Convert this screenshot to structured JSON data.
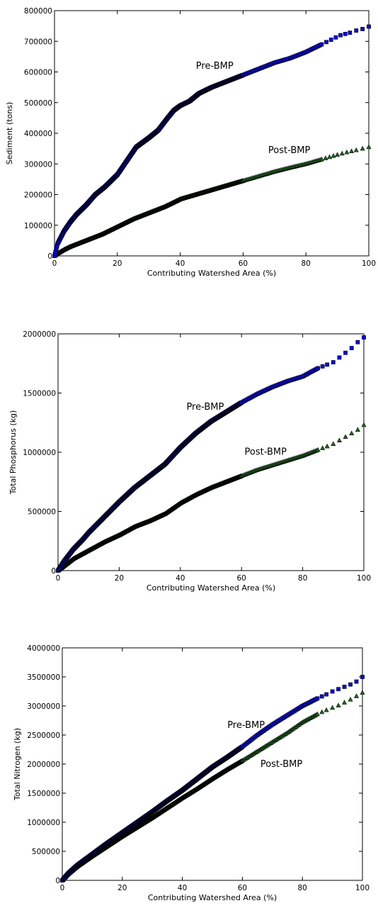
{
  "colors": {
    "pre": "#0a0ad8",
    "post": "#1e6b1e",
    "edge": "#000000"
  },
  "chart_data": [
    {
      "type": "scatter",
      "xlabel": "Contributing Watershed Area (%)",
      "ylabel": "Sediment (tons)",
      "xlim": [
        0,
        100
      ],
      "ylim": [
        0,
        800000
      ],
      "xticks": [
        0,
        20,
        40,
        60,
        80,
        100
      ],
      "yticks": [
        0,
        100000,
        200000,
        300000,
        400000,
        500000,
        600000,
        700000,
        800000
      ],
      "annotations": [
        {
          "text": "Pre-BMP",
          "x": 45,
          "y": 610000
        },
        {
          "text": "Post-BMP",
          "x": 68,
          "y": 335000
        }
      ],
      "series": [
        {
          "marker": "square",
          "color": "#0a0ad8",
          "x": [
            0,
            1,
            2,
            3,
            5,
            7,
            10,
            13,
            16,
            20,
            23,
            26,
            30,
            33,
            36,
            38,
            40,
            43,
            46,
            50,
            55,
            60,
            65,
            70,
            75,
            80,
            85,
            88,
            91,
            94,
            96,
            98,
            100
          ],
          "y": [
            0,
            40000,
            60000,
            80000,
            110000,
            135000,
            165000,
            200000,
            225000,
            265000,
            310000,
            355000,
            385000,
            410000,
            450000,
            475000,
            490000,
            505000,
            530000,
            550000,
            570000,
            590000,
            610000,
            630000,
            645000,
            665000,
            690000,
            705000,
            720000,
            728000,
            735000,
            740000,
            748000
          ]
        },
        {
          "marker": "triangle",
          "color": "#1e6b1e",
          "x": [
            0,
            1,
            3,
            5,
            10,
            15,
            20,
            25,
            30,
            35,
            40,
            45,
            50,
            55,
            60,
            65,
            70,
            75,
            80,
            85,
            90,
            93,
            96,
            98,
            100
          ],
          "y": [
            0,
            8000,
            20000,
            30000,
            50000,
            70000,
            95000,
            120000,
            140000,
            160000,
            185000,
            200000,
            215000,
            230000,
            245000,
            260000,
            275000,
            288000,
            300000,
            315000,
            330000,
            338000,
            345000,
            350000,
            355000
          ]
        }
      ]
    },
    {
      "type": "scatter",
      "xlabel": "Contributing Watershed Area (%)",
      "ylabel": "Total Phosphorus (kg)",
      "xlim": [
        0,
        100
      ],
      "ylim": [
        0,
        2000000
      ],
      "xticks": [
        0,
        20,
        40,
        60,
        80,
        100
      ],
      "yticks": [
        0,
        500000,
        1000000,
        1500000,
        2000000
      ],
      "annotations": [
        {
          "text": "Pre-BMP",
          "x": 42,
          "y": 1360000
        },
        {
          "text": "Post-BMP",
          "x": 61,
          "y": 980000
        }
      ],
      "series": [
        {
          "marker": "square",
          "color": "#0a0ad8",
          "x": [
            0,
            2,
            5,
            8,
            10,
            15,
            20,
            25,
            30,
            35,
            40,
            45,
            50,
            55,
            60,
            65,
            70,
            75,
            80,
            85,
            88,
            90,
            92,
            94,
            96,
            98,
            100
          ],
          "y": [
            0,
            80000,
            180000,
            260000,
            320000,
            450000,
            580000,
            700000,
            800000,
            900000,
            1040000,
            1160000,
            1260000,
            1340000,
            1420000,
            1490000,
            1550000,
            1600000,
            1640000,
            1710000,
            1740000,
            1760000,
            1800000,
            1840000,
            1880000,
            1930000,
            1970000
          ]
        },
        {
          "marker": "triangle",
          "color": "#1e6b1e",
          "x": [
            0,
            2,
            5,
            10,
            15,
            20,
            25,
            30,
            35,
            40,
            45,
            50,
            55,
            60,
            65,
            70,
            75,
            80,
            85,
            88,
            90,
            92,
            94,
            96,
            98,
            100
          ],
          "y": [
            0,
            40000,
            100000,
            170000,
            240000,
            300000,
            370000,
            420000,
            480000,
            570000,
            640000,
            700000,
            750000,
            800000,
            850000,
            890000,
            930000,
            970000,
            1020000,
            1050000,
            1070000,
            1100000,
            1130000,
            1160000,
            1190000,
            1230000
          ]
        }
      ]
    },
    {
      "type": "scatter",
      "xlabel": "Contributing Watershed Area (%)",
      "ylabel": "Total Nitrogen (kg)",
      "xlim": [
        0,
        100
      ],
      "ylim": [
        0,
        4000000
      ],
      "xticks": [
        0,
        20,
        40,
        60,
        80,
        100
      ],
      "yticks": [
        0,
        500000,
        1000000,
        1500000,
        2000000,
        2500000,
        3000000,
        3500000,
        4000000
      ],
      "annotations": [
        {
          "text": "Pre-BMP",
          "x": 55,
          "y": 2620000
        },
        {
          "text": "Post-BMP",
          "x": 66,
          "y": 1950000
        }
      ],
      "series": [
        {
          "marker": "square",
          "color": "#0a0ad8",
          "x": [
            0,
            2,
            5,
            10,
            15,
            20,
            25,
            30,
            35,
            40,
            45,
            50,
            55,
            60,
            65,
            70,
            75,
            80,
            85,
            88,
            90,
            92,
            94,
            96,
            98,
            100
          ],
          "y": [
            0,
            120000,
            260000,
            450000,
            640000,
            820000,
            1000000,
            1180000,
            1370000,
            1550000,
            1750000,
            1950000,
            2120000,
            2300000,
            2500000,
            2680000,
            2840000,
            3000000,
            3130000,
            3200000,
            3250000,
            3290000,
            3330000,
            3370000,
            3420000,
            3500000
          ]
        },
        {
          "marker": "triangle",
          "color": "#1e6b1e",
          "x": [
            0,
            2,
            5,
            10,
            15,
            20,
            25,
            30,
            35,
            40,
            45,
            50,
            55,
            60,
            65,
            70,
            75,
            80,
            85,
            88,
            90,
            92,
            94,
            96,
            98,
            100
          ],
          "y": [
            0,
            110000,
            240000,
            420000,
            590000,
            760000,
            920000,
            1080000,
            1250000,
            1420000,
            1580000,
            1750000,
            1910000,
            2060000,
            2220000,
            2380000,
            2540000,
            2720000,
            2860000,
            2930000,
            2970000,
            3010000,
            3060000,
            3110000,
            3170000,
            3230000
          ]
        }
      ]
    }
  ]
}
